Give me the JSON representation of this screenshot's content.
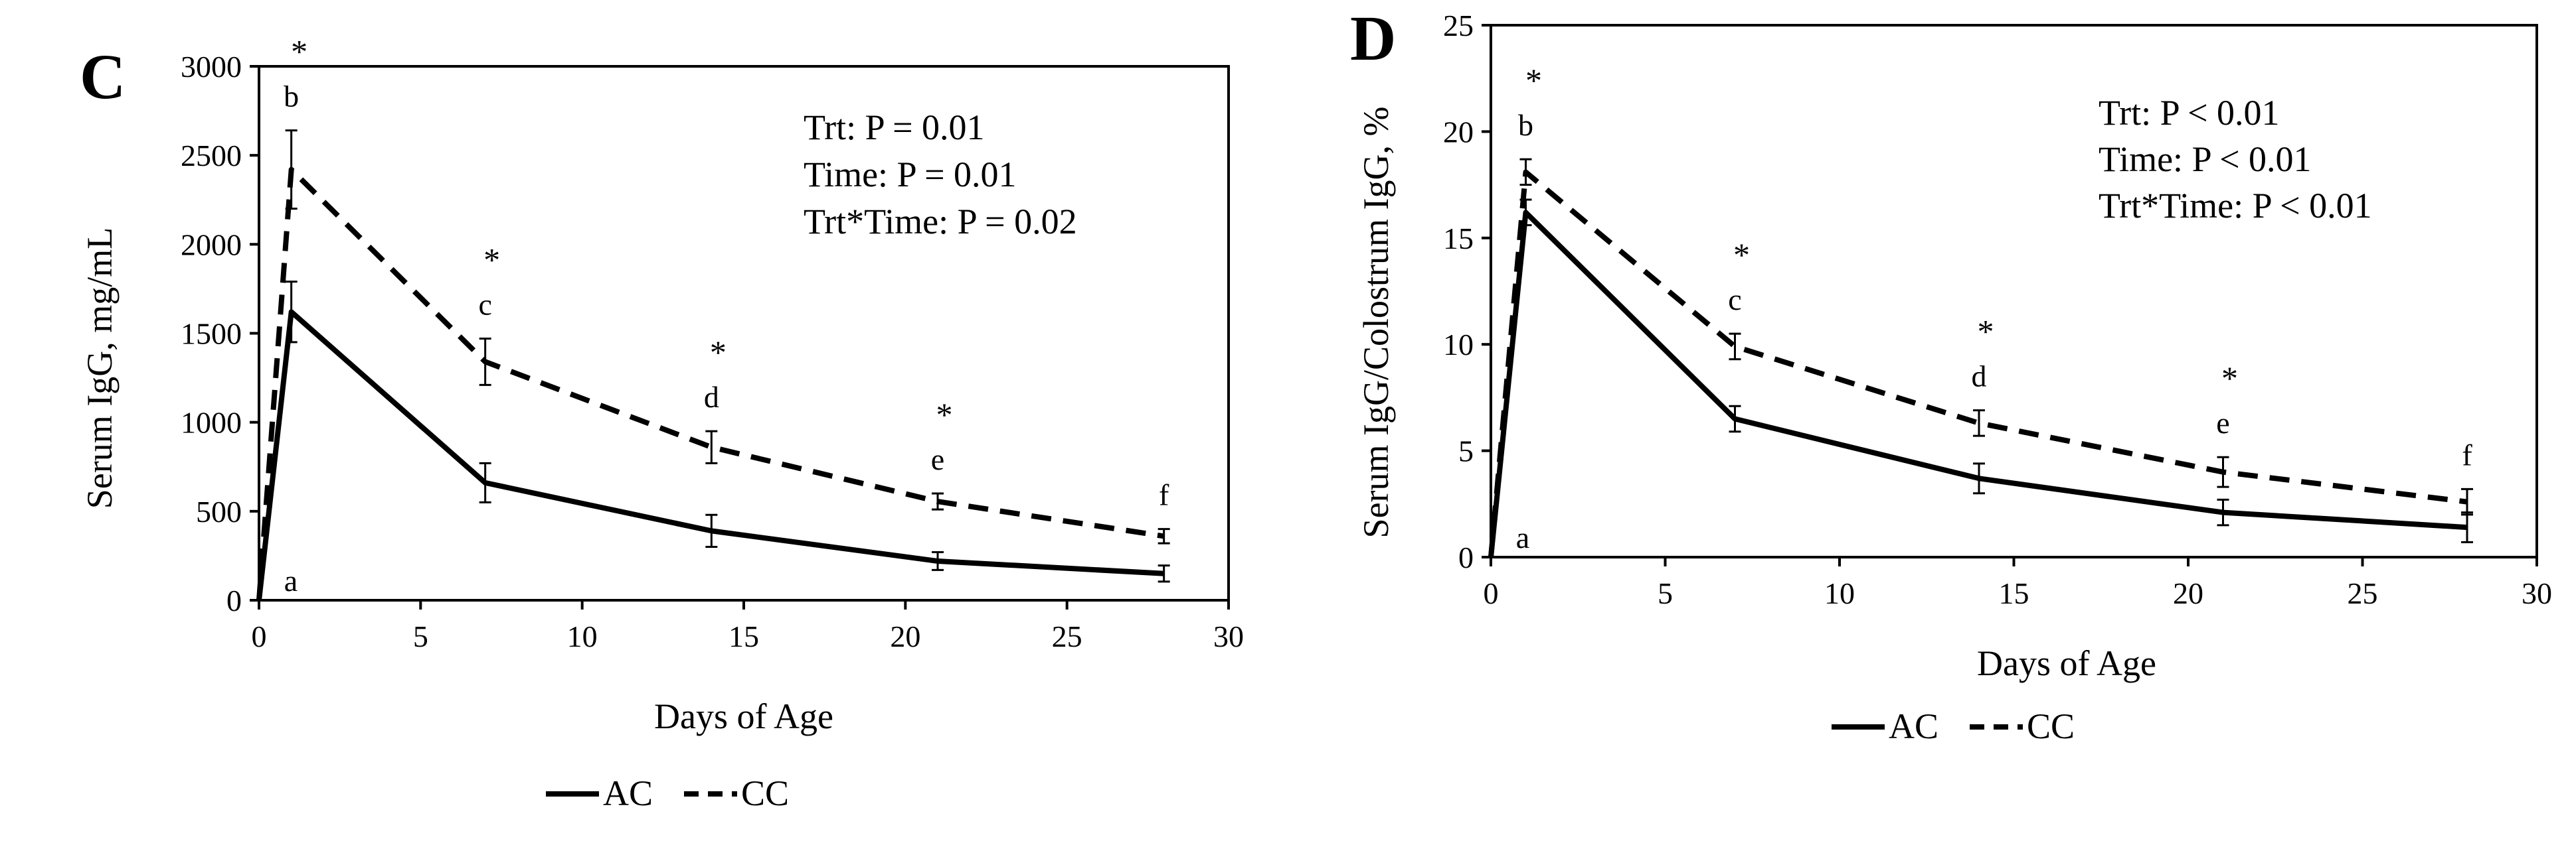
{
  "colors": {
    "line": "#000000",
    "background": "#ffffff"
  },
  "chart_data": [
    {
      "type": "line",
      "panel_label": "C",
      "title": "",
      "xlabel": "Days of Age",
      "ylabel": "Serum IgG, mg/mL",
      "xlim": [
        0,
        30
      ],
      "ylim": [
        0,
        3000
      ],
      "xticks": [
        0,
        5,
        10,
        15,
        20,
        25,
        30
      ],
      "yticks": [
        0,
        500,
        1000,
        1500,
        2000,
        2500,
        3000
      ],
      "x": [
        0,
        1,
        7,
        14,
        21,
        28
      ],
      "series": [
        {
          "name": "AC",
          "style": "solid",
          "values": [
            0,
            1620,
            660,
            390,
            220,
            150
          ],
          "errors": [
            0,
            170,
            110,
            90,
            50,
            45
          ]
        },
        {
          "name": "CC",
          "style": "dashed",
          "values": [
            0,
            2420,
            1340,
            860,
            555,
            360
          ],
          "errors": [
            0,
            220,
            130,
            90,
            45,
            40
          ]
        }
      ],
      "annotations": [
        {
          "x": 0,
          "y": 0,
          "letter": "a",
          "star": ""
        },
        {
          "x": 1,
          "y": 2640,
          "letter": "b",
          "star": "*"
        },
        {
          "x": 7,
          "y": 1470,
          "letter": "c",
          "star": "*"
        },
        {
          "x": 14,
          "y": 950,
          "letter": "d",
          "star": "*"
        },
        {
          "x": 21,
          "y": 600,
          "letter": "e",
          "star": "*"
        },
        {
          "x": 28,
          "y": 400,
          "letter": "f",
          "star": ""
        }
      ],
      "stats": [
        "Trt: P = 0.01",
        "Time: P = 0.01",
        "Trt*Time: P = 0.02"
      ],
      "legend": [
        "AC",
        "CC"
      ]
    },
    {
      "type": "line",
      "panel_label": "D",
      "title": "",
      "xlabel": "Days of Age",
      "ylabel": "Serum IgG/Colostrum IgG, %",
      "xlim": [
        0,
        30
      ],
      "ylim": [
        0,
        25
      ],
      "xticks": [
        0,
        5,
        10,
        15,
        20,
        25,
        30
      ],
      "yticks": [
        0,
        5,
        10,
        15,
        20,
        25
      ],
      "x": [
        0,
        1,
        7,
        14,
        21,
        28
      ],
      "series": [
        {
          "name": "AC",
          "style": "solid",
          "values": [
            0,
            16.2,
            6.5,
            3.7,
            2.1,
            1.4
          ],
          "errors": [
            0,
            0.6,
            0.6,
            0.7,
            0.6,
            0.7
          ]
        },
        {
          "name": "CC",
          "style": "dashed",
          "values": [
            0,
            18.1,
            9.9,
            6.3,
            4.0,
            2.6
          ],
          "errors": [
            0,
            0.6,
            0.6,
            0.6,
            0.7,
            0.6
          ]
        }
      ],
      "annotations": [
        {
          "x": 0,
          "y": 0,
          "letter": "a",
          "star": ""
        },
        {
          "x": 1,
          "y": 18.7,
          "letter": "b",
          "star": "*"
        },
        {
          "x": 7,
          "y": 10.5,
          "letter": "c",
          "star": "*"
        },
        {
          "x": 14,
          "y": 6.9,
          "letter": "d",
          "star": "*"
        },
        {
          "x": 21,
          "y": 4.7,
          "letter": "e",
          "star": "*"
        },
        {
          "x": 28,
          "y": 3.2,
          "letter": "f",
          "star": ""
        }
      ],
      "stats": [
        "Trt: P < 0.01",
        "Time: P < 0.01",
        "Trt*Time: P < 0.01"
      ],
      "legend": [
        "AC",
        "CC"
      ]
    }
  ]
}
